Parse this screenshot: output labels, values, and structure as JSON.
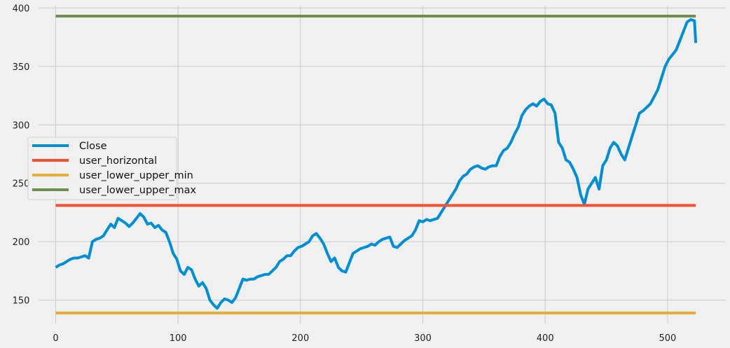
{
  "chart_data": {
    "type": "line",
    "title": "",
    "xlabel": "",
    "ylabel": "",
    "xlim": [
      -14,
      547
    ],
    "ylim": [
      130,
      402
    ],
    "x_ticks": [
      0,
      100,
      200,
      300,
      400,
      500
    ],
    "y_ticks": [
      150,
      200,
      250,
      300,
      350,
      400
    ],
    "grid": true,
    "legend_position": "center-left",
    "series": [
      {
        "name": "Close",
        "color": "#008fd5",
        "x": [
          0,
          3,
          6,
          9,
          12,
          15,
          18,
          21,
          24,
          27,
          30,
          33,
          36,
          39,
          42,
          45,
          48,
          51,
          54,
          57,
          60,
          63,
          66,
          69,
          72,
          75,
          78,
          81,
          84,
          87,
          90,
          93,
          96,
          99,
          102,
          105,
          108,
          111,
          114,
          117,
          120,
          123,
          126,
          129,
          132,
          135,
          138,
          141,
          144,
          147,
          150,
          153,
          156,
          159,
          162,
          165,
          168,
          171,
          174,
          177,
          180,
          183,
          186,
          189,
          192,
          195,
          198,
          201,
          204,
          207,
          210,
          213,
          216,
          219,
          222,
          225,
          228,
          231,
          234,
          237,
          240,
          243,
          246,
          249,
          252,
          255,
          258,
          261,
          264,
          267,
          270,
          273,
          276,
          279,
          282,
          285,
          288,
          291,
          294,
          297,
          300,
          303,
          306,
          309,
          312,
          315,
          318,
          321,
          324,
          327,
          330,
          333,
          336,
          339,
          342,
          345,
          348,
          351,
          354,
          357,
          360,
          363,
          366,
          369,
          372,
          375,
          378,
          381,
          384,
          387,
          390,
          393,
          396,
          399,
          402,
          405,
          408,
          411,
          414,
          417,
          420,
          423,
          426,
          429,
          432,
          435,
          438,
          441,
          444,
          447,
          450,
          453,
          456,
          459,
          462,
          465,
          468,
          471,
          474,
          477,
          480,
          483,
          486,
          489,
          492,
          495,
          498,
          501,
          504,
          507,
          510,
          513,
          516,
          519,
          522,
          523
        ],
        "y": [
          178,
          180,
          181,
          183,
          185,
          186,
          186,
          187,
          188,
          186,
          200,
          202,
          203,
          205,
          210,
          215,
          212,
          220,
          218,
          216,
          213,
          216,
          220,
          224,
          221,
          215,
          216,
          212,
          214,
          210,
          208,
          200,
          190,
          185,
          175,
          172,
          178,
          176,
          168,
          162,
          165,
          160,
          150,
          146,
          143,
          148,
          151,
          150,
          148,
          152,
          160,
          168,
          167,
          168,
          168,
          170,
          171,
          172,
          172,
          175,
          178,
          183,
          185,
          188,
          188,
          192,
          195,
          196,
          198,
          200,
          205,
          207,
          203,
          198,
          190,
          183,
          186,
          178,
          175,
          174,
          182,
          190,
          192,
          194,
          195,
          196,
          198,
          197,
          200,
          202,
          203,
          204,
          196,
          195,
          198,
          201,
          203,
          205,
          210,
          218,
          217,
          219,
          218,
          219,
          220,
          225,
          230,
          235,
          240,
          245,
          252,
          256,
          258,
          262,
          264,
          265,
          263,
          262,
          264,
          265,
          265,
          273,
          278,
          280,
          285,
          292,
          298,
          308,
          313,
          316,
          318,
          316,
          320,
          322,
          318,
          317,
          310,
          285,
          280,
          270,
          268,
          262,
          255,
          240,
          232,
          245,
          250,
          255,
          245,
          265,
          270,
          280,
          285,
          282,
          275,
          270,
          280,
          290,
          300,
          310,
          312,
          315,
          318,
          324,
          330,
          340,
          350,
          356,
          360,
          364,
          372,
          380,
          388,
          390,
          389,
          370
        ],
        "line_width": 4
      },
      {
        "name": "user_horizontal",
        "color": "#fc4f30",
        "x": [
          0,
          523
        ],
        "y": [
          231,
          231
        ],
        "line_width": 4
      },
      {
        "name": "user_lower_upper_min",
        "color": "#e5ae38",
        "x": [
          0,
          523
        ],
        "y": [
          139,
          139
        ],
        "line_width": 4
      },
      {
        "name": "user_lower_upper_max",
        "color": "#6d904f",
        "x": [
          0,
          523
        ],
        "y": [
          393,
          393
        ],
        "line_width": 4
      }
    ]
  }
}
